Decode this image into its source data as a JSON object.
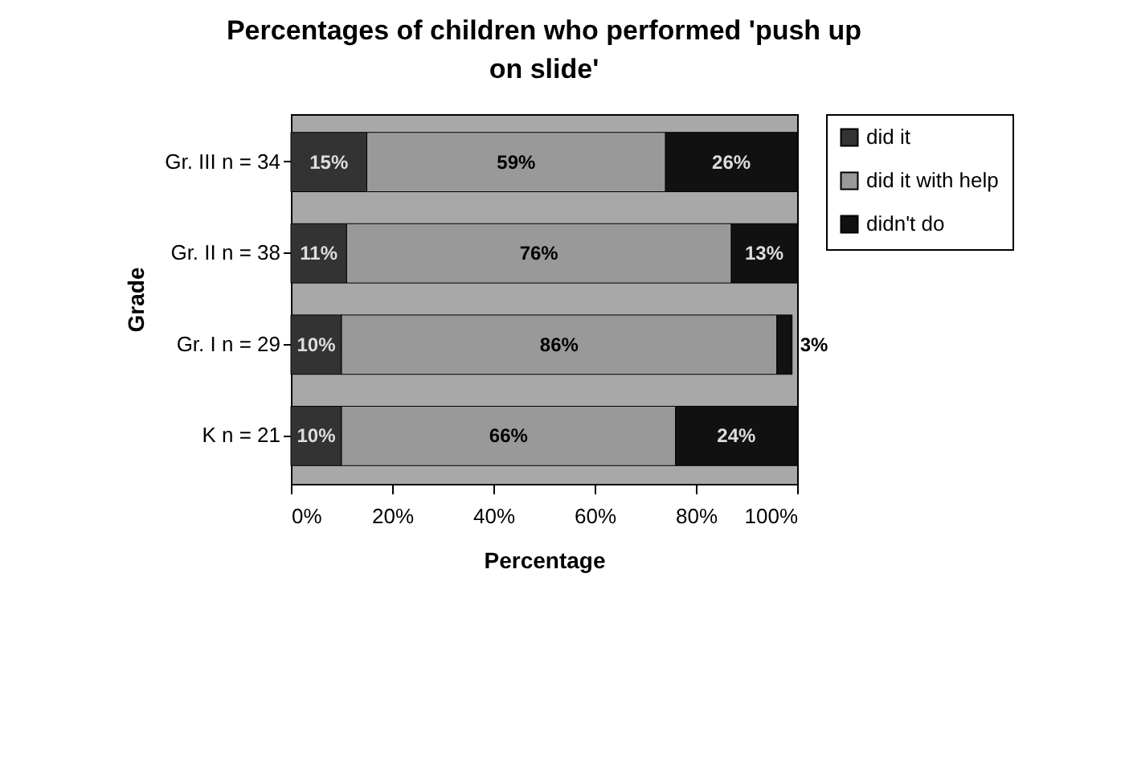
{
  "chart_data": {
    "type": "bar",
    "orientation": "horizontal",
    "stacked": true,
    "title": "Percentages of children who performed 'push up on slide'",
    "xlabel": "Percentage",
    "ylabel": "Grade",
    "categories": [
      "Gr. III n = 34",
      "Gr. II n = 38",
      "Gr. I n = 29",
      "K n = 21"
    ],
    "series": [
      {
        "name": "did it",
        "color": "#333333",
        "values": [
          15,
          11,
          10,
          10
        ],
        "value_labels": [
          "15%",
          "11%",
          "10%",
          "10%"
        ]
      },
      {
        "name": "did it with help",
        "color": "#999999",
        "values": [
          59,
          76,
          86,
          66
        ],
        "value_labels": [
          "59%",
          "76%",
          "86%",
          "66%"
        ]
      },
      {
        "name": "didn't do",
        "color": "#111111",
        "values": [
          26,
          13,
          3,
          24
        ],
        "value_labels": [
          "26%",
          "13%",
          "3%",
          "24%"
        ]
      }
    ],
    "xlim": [
      0,
      100
    ],
    "xticks": [
      {
        "value": 0,
        "label": "0%"
      },
      {
        "value": 20,
        "label": "20%"
      },
      {
        "value": 40,
        "label": "40%"
      },
      {
        "value": 60,
        "label": "60%"
      },
      {
        "value": 80,
        "label": "80%"
      },
      {
        "value": 100,
        "label": "100%"
      }
    ],
    "legend": "right",
    "grid": false
  }
}
